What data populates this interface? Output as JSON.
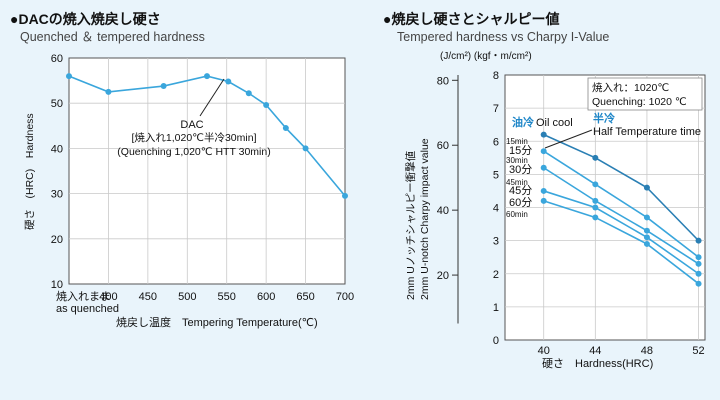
{
  "colors": {
    "background": "#e9f4fb",
    "plot_bg": "#ffffff",
    "line": "#3aa6dc",
    "line_dark": "#2a7fb4",
    "grid": "#c9c9c9",
    "text": "#111111",
    "accent_text": "#1e86c8"
  },
  "chart_data": [
    {
      "type": "line",
      "title": "●DACの焼入焼戻し硬さ",
      "subtitle": "Quenched ＆ tempered hardness",
      "ylabel": "硬さ　(HRC)　Hardness",
      "xlabel": "焼戻し温度　Tempering Temperature(℃)",
      "x_first_label_lines": [
        "焼入れまま",
        "as quenched"
      ],
      "categories": [
        "",
        "400",
        "450",
        "500",
        "550",
        "600",
        "650",
        "700"
      ],
      "xlim": [
        350,
        700
      ],
      "ylim": [
        10,
        60
      ],
      "yticks": [
        10,
        20,
        30,
        40,
        50,
        60
      ],
      "grid": true,
      "series": [
        {
          "x": [
            350,
            400,
            470,
            525,
            552,
            578,
            600,
            625,
            650,
            700
          ],
          "y": [
            56,
            52.5,
            53.8,
            56,
            54.8,
            52.2,
            49.6,
            44.5,
            40,
            29.5
          ]
        }
      ],
      "annotation": [
        "DAC",
        "[焼入れ1,020℃半冷30min]",
        "(Quenching 1,020℃ HTT 30min)"
      ]
    },
    {
      "type": "line",
      "title": "●焼戻し硬さとシャルピー値",
      "subtitle": "Tempered hardness vs Charpy I-Value",
      "units_label": "(J/cm²)  (kgf・m/cm²)",
      "ylabel_lines": [
        "2mm Uノッチシャルピー衝撃値",
        "2mm U-notch Charpy impact value"
      ],
      "xlabel": "硬さ　Hardness(HRC)",
      "xlim": [
        37,
        52.5
      ],
      "xticks": [
        40,
        44,
        48,
        52
      ],
      "ylim": [
        0,
        8
      ],
      "yticks": [
        0,
        1,
        2,
        3,
        4,
        5,
        6,
        7,
        8
      ],
      "y2_ticks": [
        {
          "y": 1.96,
          "label": "20"
        },
        {
          "y": 3.92,
          "label": "40"
        },
        {
          "y": 5.88,
          "label": "60"
        },
        {
          "y": 7.84,
          "label": "80"
        }
      ],
      "grid": true,
      "series": [
        {
          "name": "油冷",
          "x": [
            40,
            44,
            48,
            52
          ],
          "y": [
            6.2,
            5.5,
            4.6,
            3.0
          ]
        },
        {
          "name": "15分",
          "x": [
            40,
            44,
            48,
            52
          ],
          "y": [
            5.7,
            4.7,
            3.7,
            2.5
          ]
        },
        {
          "name": "30分",
          "x": [
            40,
            44,
            48,
            52
          ],
          "y": [
            5.2,
            4.2,
            3.3,
            2.3
          ]
        },
        {
          "name": "45分",
          "x": [
            40,
            44,
            48,
            52
          ],
          "y": [
            4.5,
            4.0,
            3.1,
            2.0
          ]
        },
        {
          "name": "60分",
          "x": [
            40,
            44,
            48,
            52
          ],
          "y": [
            4.2,
            3.7,
            2.9,
            1.7
          ]
        }
      ],
      "box_lines": [
        "焼入れ：1020℃",
        "Quenching: 1020 ℃"
      ],
      "legend": {
        "oil_jp": "油冷",
        "oil_en": "Oil cool",
        "half_jp": "半冷",
        "half_en": "Half Temperature time"
      },
      "min_labels": [
        "15min",
        "30min",
        "45min",
        "60min"
      ]
    }
  ]
}
